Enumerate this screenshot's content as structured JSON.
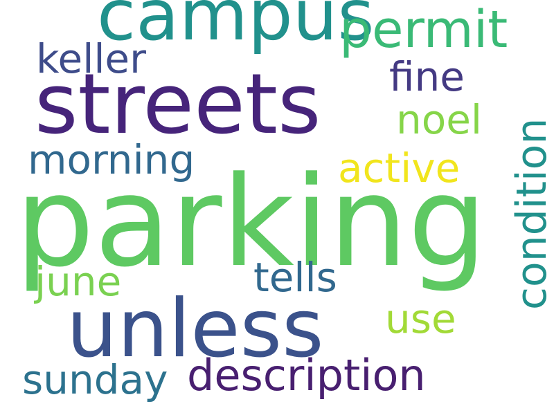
{
  "words": {
    "parking": {
      "text": "parking",
      "color": "#5ec962"
    },
    "streets": {
      "text": "streets",
      "color": "#46247a"
    },
    "unless": {
      "text": "unless",
      "color": "#3b528b"
    },
    "campus": {
      "text": "campus",
      "color": "#21918c"
    },
    "permit": {
      "text": "permit",
      "color": "#3aba76"
    },
    "description": {
      "text": "description",
      "color": "#481f70"
    },
    "condition": {
      "text": "condition",
      "color": "#21918c"
    },
    "sunday": {
      "text": "sunday",
      "color": "#2c728e"
    },
    "morning": {
      "text": "morning",
      "color": "#31688e"
    },
    "active": {
      "text": "active",
      "color": "#f1e51d"
    },
    "fine": {
      "text": "fine",
      "color": "#443a83"
    },
    "tells": {
      "text": "tells",
      "color": "#31688e"
    },
    "keller": {
      "text": "keller",
      "color": "#3e4c8a"
    },
    "noel": {
      "text": "noel",
      "color": "#86d549"
    },
    "use": {
      "text": "use",
      "color": "#a2da37"
    },
    "june": {
      "text": "june",
      "color": "#7ad151"
    }
  }
}
